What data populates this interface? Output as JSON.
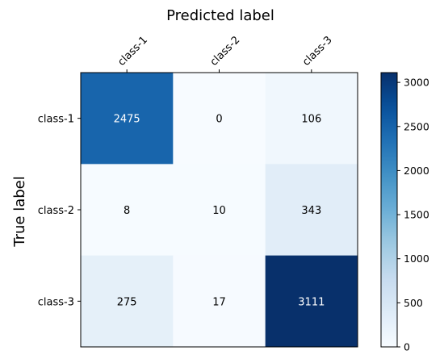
{
  "chart_data": {
    "type": "heatmap",
    "title": "Predicted label",
    "ylabel": "True label",
    "x_categories": [
      "class-1",
      "class-2",
      "class-3"
    ],
    "y_categories": [
      "class-1",
      "class-2",
      "class-3"
    ],
    "values": [
      [
        2475,
        0,
        106
      ],
      [
        8,
        10,
        343
      ],
      [
        275,
        17,
        3111
      ]
    ],
    "colormap": "Blues",
    "color_range": [
      0,
      3111
    ],
    "colorbar_ticks": [
      0,
      500,
      1000,
      1500,
      2000,
      2500,
      3000
    ],
    "x_axis_position": "top",
    "grid": false
  }
}
